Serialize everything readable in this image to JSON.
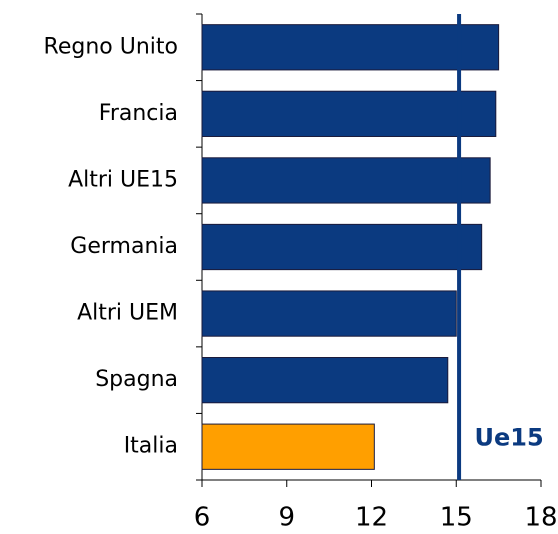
{
  "chart_data": {
    "type": "bar",
    "orientation": "horizontal",
    "categories": [
      "Regno Unito",
      "Francia",
      "Altri UE15",
      "Germania",
      "Altri UEM",
      "Spagna",
      "Italia"
    ],
    "values": [
      16.5,
      16.4,
      16.2,
      15.9,
      15.0,
      14.7,
      12.1
    ],
    "colors": [
      "#0b3a80",
      "#0b3a80",
      "#0b3a80",
      "#0b3a80",
      "#0b3a80",
      "#0b3a80",
      "#ff9f00"
    ],
    "xlim": [
      6,
      18
    ],
    "xticks": [
      6,
      9,
      12,
      15,
      18
    ],
    "reference_line": {
      "value": 15.1,
      "label": "Ue15",
      "color": "#0b3a80"
    }
  }
}
